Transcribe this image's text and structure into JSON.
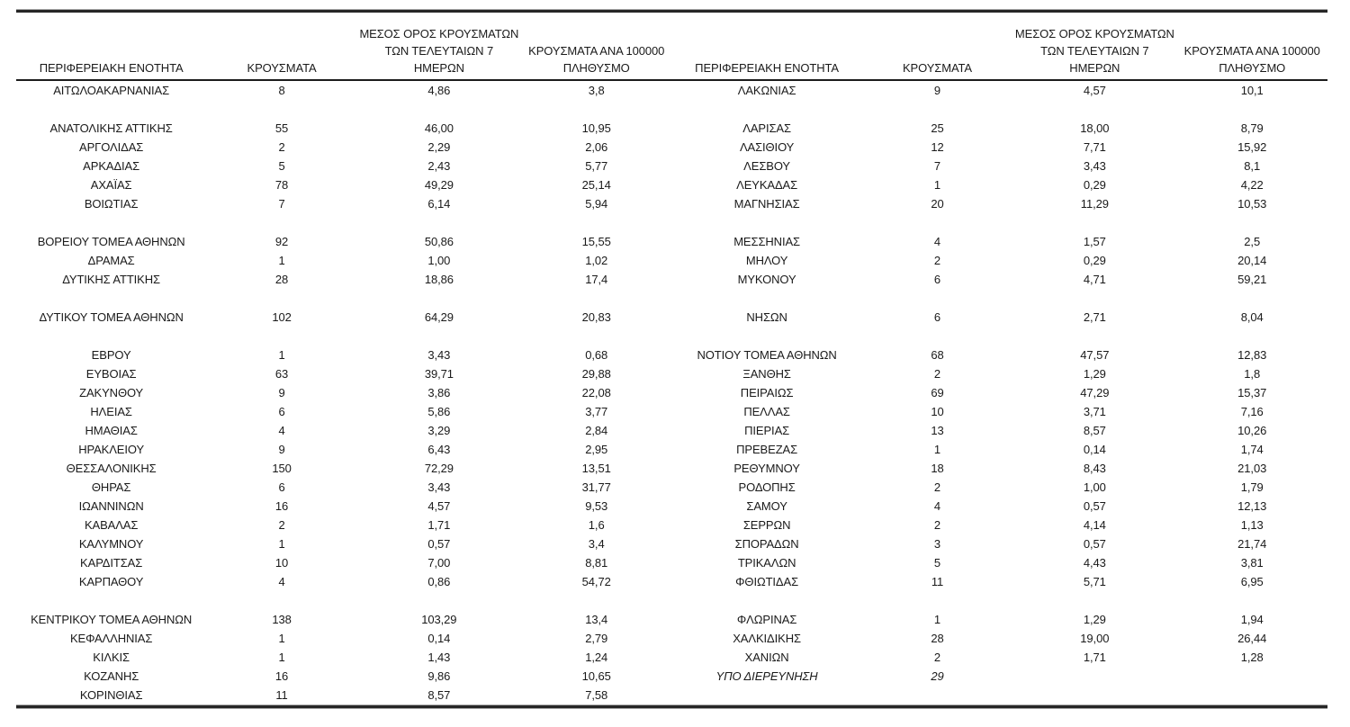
{
  "document": {
    "type": "regional-cases-table",
    "text_color": "#1a1a1a",
    "rule_color": "#262626",
    "background": "#ffffff"
  },
  "table": {
    "headers": {
      "region": "ΠΕΡΙΦΕΡΕΙΑΚΗ ΕΝΟΤΗΤΑ",
      "cases": "ΚΡΟΥΣΜΑΤΑ",
      "avg7": "ΜΕΣΟΣ ΟΡΟΣ ΚΡΟΥΣΜΑΤΩΝ\nΤΩΝ ΤΕΛΕΥΤΑΙΩΝ 7\nΗΜΕΡΩΝ",
      "per100k": "ΚΡΟΥΣΜΑΤΑ ΑΝΑ 100000\nΠΛΗΘΥΣΜΟ"
    },
    "rows": [
      {
        "type": "data",
        "left": {
          "name": "ΑΙΤΩΛΟΑΚΑΡΝΑΝΙΑΣ",
          "cases": "8",
          "avg7": "4,86",
          "per100k": "3,8"
        },
        "right": {
          "name": "ΛΑΚΩΝΙΑΣ",
          "cases": "9",
          "avg7": "4,57",
          "per100k": "10,1"
        }
      },
      {
        "type": "spacer"
      },
      {
        "type": "data",
        "left": {
          "name": "ΑΝΑΤΟΛΙΚΗΣ ΑΤΤΙΚΗΣ",
          "cases": "55",
          "avg7": "46,00",
          "per100k": "10,95"
        },
        "right": {
          "name": "ΛΑΡΙΣΑΣ",
          "cases": "25",
          "avg7": "18,00",
          "per100k": "8,79"
        }
      },
      {
        "type": "data",
        "left": {
          "name": "ΑΡΓΟΛΙΔΑΣ",
          "cases": "2",
          "avg7": "2,29",
          "per100k": "2,06"
        },
        "right": {
          "name": "ΛΑΣΙΘΙΟΥ",
          "cases": "12",
          "avg7": "7,71",
          "per100k": "15,92"
        }
      },
      {
        "type": "data",
        "left": {
          "name": "ΑΡΚΑΔΙΑΣ",
          "cases": "5",
          "avg7": "2,43",
          "per100k": "5,77"
        },
        "right": {
          "name": "ΛΕΣΒΟΥ",
          "cases": "7",
          "avg7": "3,43",
          "per100k": "8,1"
        }
      },
      {
        "type": "data",
        "left": {
          "name": "ΑΧΑΪΑΣ",
          "cases": "78",
          "avg7": "49,29",
          "per100k": "25,14"
        },
        "right": {
          "name": "ΛΕΥΚΑΔΑΣ",
          "cases": "1",
          "avg7": "0,29",
          "per100k": "4,22"
        }
      },
      {
        "type": "data",
        "left": {
          "name": "ΒΟΙΩΤΙΑΣ",
          "cases": "7",
          "avg7": "6,14",
          "per100k": "5,94"
        },
        "right": {
          "name": "ΜΑΓΝΗΣΙΑΣ",
          "cases": "20",
          "avg7": "11,29",
          "per100k": "10,53"
        }
      },
      {
        "type": "spacer"
      },
      {
        "type": "data",
        "left": {
          "name": "ΒΟΡΕΙΟΥ ΤΟΜΕΑ ΑΘΗΝΩΝ",
          "cases": "92",
          "avg7": "50,86",
          "per100k": "15,55"
        },
        "right": {
          "name": "ΜΕΣΣΗΝΙΑΣ",
          "cases": "4",
          "avg7": "1,57",
          "per100k": "2,5"
        }
      },
      {
        "type": "data",
        "left": {
          "name": "ΔΡΑΜΑΣ",
          "cases": "1",
          "avg7": "1,00",
          "per100k": "1,02"
        },
        "right": {
          "name": "ΜΗΛΟΥ",
          "cases": "2",
          "avg7": "0,29",
          "per100k": "20,14"
        }
      },
      {
        "type": "data",
        "left": {
          "name": "ΔΥΤΙΚΗΣ ΑΤΤΙΚΗΣ",
          "cases": "28",
          "avg7": "18,86",
          "per100k": "17,4"
        },
        "right": {
          "name": "ΜΥΚΟΝΟΥ",
          "cases": "6",
          "avg7": "4,71",
          "per100k": "59,21"
        }
      },
      {
        "type": "spacer"
      },
      {
        "type": "data",
        "left": {
          "name": "ΔΥΤΙΚΟΥ ΤΟΜΕΑ ΑΘΗΝΩΝ",
          "cases": "102",
          "avg7": "64,29",
          "per100k": "20,83"
        },
        "right": {
          "name": "ΝΗΣΩΝ",
          "cases": "6",
          "avg7": "2,71",
          "per100k": "8,04"
        }
      },
      {
        "type": "spacer"
      },
      {
        "type": "data",
        "left": {
          "name": "ΕΒΡΟΥ",
          "cases": "1",
          "avg7": "3,43",
          "per100k": "0,68"
        },
        "right": {
          "name": "ΝΟΤΙΟΥ ΤΟΜΕΑ ΑΘΗΝΩΝ",
          "cases": "68",
          "avg7": "47,57",
          "per100k": "12,83"
        }
      },
      {
        "type": "data",
        "left": {
          "name": "ΕΥΒΟΙΑΣ",
          "cases": "63",
          "avg7": "39,71",
          "per100k": "29,88"
        },
        "right": {
          "name": "ΞΑΝΘΗΣ",
          "cases": "2",
          "avg7": "1,29",
          "per100k": "1,8"
        }
      },
      {
        "type": "data",
        "left": {
          "name": "ΖΑΚΥΝΘΟΥ",
          "cases": "9",
          "avg7": "3,86",
          "per100k": "22,08"
        },
        "right": {
          "name": "ΠΕΙΡΑΙΩΣ",
          "cases": "69",
          "avg7": "47,29",
          "per100k": "15,37"
        }
      },
      {
        "type": "data",
        "left": {
          "name": "ΗΛΕΙΑΣ",
          "cases": "6",
          "avg7": "5,86",
          "per100k": "3,77"
        },
        "right": {
          "name": "ΠΕΛΛΑΣ",
          "cases": "10",
          "avg7": "3,71",
          "per100k": "7,16"
        }
      },
      {
        "type": "data",
        "left": {
          "name": "ΗΜΑΘΙΑΣ",
          "cases": "4",
          "avg7": "3,29",
          "per100k": "2,84"
        },
        "right": {
          "name": "ΠΙΕΡΙΑΣ",
          "cases": "13",
          "avg7": "8,57",
          "per100k": "10,26"
        }
      },
      {
        "type": "data",
        "left": {
          "name": "ΗΡΑΚΛΕΙΟΥ",
          "cases": "9",
          "avg7": "6,43",
          "per100k": "2,95"
        },
        "right": {
          "name": "ΠΡΕΒΕΖΑΣ",
          "cases": "1",
          "avg7": "0,14",
          "per100k": "1,74"
        }
      },
      {
        "type": "data",
        "left": {
          "name": "ΘΕΣΣΑΛΟΝΙΚΗΣ",
          "cases": "150",
          "avg7": "72,29",
          "per100k": "13,51"
        },
        "right": {
          "name": "ΡΕΘΥΜΝΟΥ",
          "cases": "18",
          "avg7": "8,43",
          "per100k": "21,03"
        }
      },
      {
        "type": "data",
        "left": {
          "name": "ΘΗΡΑΣ",
          "cases": "6",
          "avg7": "3,43",
          "per100k": "31,77"
        },
        "right": {
          "name": "ΡΟΔΟΠΗΣ",
          "cases": "2",
          "avg7": "1,00",
          "per100k": "1,79"
        }
      },
      {
        "type": "data",
        "left": {
          "name": "ΙΩΑΝΝΙΝΩΝ",
          "cases": "16",
          "avg7": "4,57",
          "per100k": "9,53"
        },
        "right": {
          "name": "ΣΑΜΟΥ",
          "cases": "4",
          "avg7": "0,57",
          "per100k": "12,13"
        }
      },
      {
        "type": "data",
        "left": {
          "name": "ΚΑΒΑΛΑΣ",
          "cases": "2",
          "avg7": "1,71",
          "per100k": "1,6"
        },
        "right": {
          "name": "ΣΕΡΡΩΝ",
          "cases": "2",
          "avg7": "4,14",
          "per100k": "1,13"
        }
      },
      {
        "type": "data",
        "left": {
          "name": "ΚΑΛΥΜΝΟΥ",
          "cases": "1",
          "avg7": "0,57",
          "per100k": "3,4"
        },
        "right": {
          "name": "ΣΠΟΡΑΔΩΝ",
          "cases": "3",
          "avg7": "0,57",
          "per100k": "21,74"
        }
      },
      {
        "type": "data",
        "left": {
          "name": "ΚΑΡΔΙΤΣΑΣ",
          "cases": "10",
          "avg7": "7,00",
          "per100k": "8,81"
        },
        "right": {
          "name": "ΤΡΙΚΑΛΩΝ",
          "cases": "5",
          "avg7": "4,43",
          "per100k": "3,81"
        }
      },
      {
        "type": "data",
        "left": {
          "name": "ΚΑΡΠΑΘΟΥ",
          "cases": "4",
          "avg7": "0,86",
          "per100k": "54,72"
        },
        "right": {
          "name": "ΦΘΙΩΤΙΔΑΣ",
          "cases": "11",
          "avg7": "5,71",
          "per100k": "6,95"
        }
      },
      {
        "type": "spacer"
      },
      {
        "type": "data",
        "left": {
          "name": "ΚΕΝΤΡΙΚΟΥ ΤΟΜΕΑ ΑΘΗΝΩΝ",
          "cases": "138",
          "avg7": "103,29",
          "per100k": "13,4"
        },
        "right": {
          "name": "ΦΛΩΡΙΝΑΣ",
          "cases": "1",
          "avg7": "1,29",
          "per100k": "1,94"
        }
      },
      {
        "type": "data",
        "left": {
          "name": "ΚΕΦΑΛΛΗΝΙΑΣ",
          "cases": "1",
          "avg7": "0,14",
          "per100k": "2,79"
        },
        "right": {
          "name": "ΧΑΛΚΙΔΙΚΗΣ",
          "cases": "28",
          "avg7": "19,00",
          "per100k": "26,44"
        }
      },
      {
        "type": "data",
        "left": {
          "name": "ΚΙΛΚΙΣ",
          "cases": "1",
          "avg7": "1,43",
          "per100k": "1,24"
        },
        "right": {
          "name": "ΧΑΝΙΩΝ",
          "cases": "2",
          "avg7": "1,71",
          "per100k": "1,28"
        }
      },
      {
        "type": "data",
        "left": {
          "name": "ΚΟΖΑΝΗΣ",
          "cases": "16",
          "avg7": "9,86",
          "per100k": "10,65"
        },
        "right": {
          "name": "ΥΠΟ ΔΙΕΡΕΥΝΗΣΗ",
          "cases": "29",
          "avg7": "",
          "per100k": "",
          "italic": true
        }
      },
      {
        "type": "data",
        "left": {
          "name": "ΚΟΡΙΝΘΙΑΣ",
          "cases": "11",
          "avg7": "8,57",
          "per100k": "7,58"
        },
        "right": {
          "name": "",
          "cases": "",
          "avg7": "",
          "per100k": ""
        }
      }
    ]
  }
}
